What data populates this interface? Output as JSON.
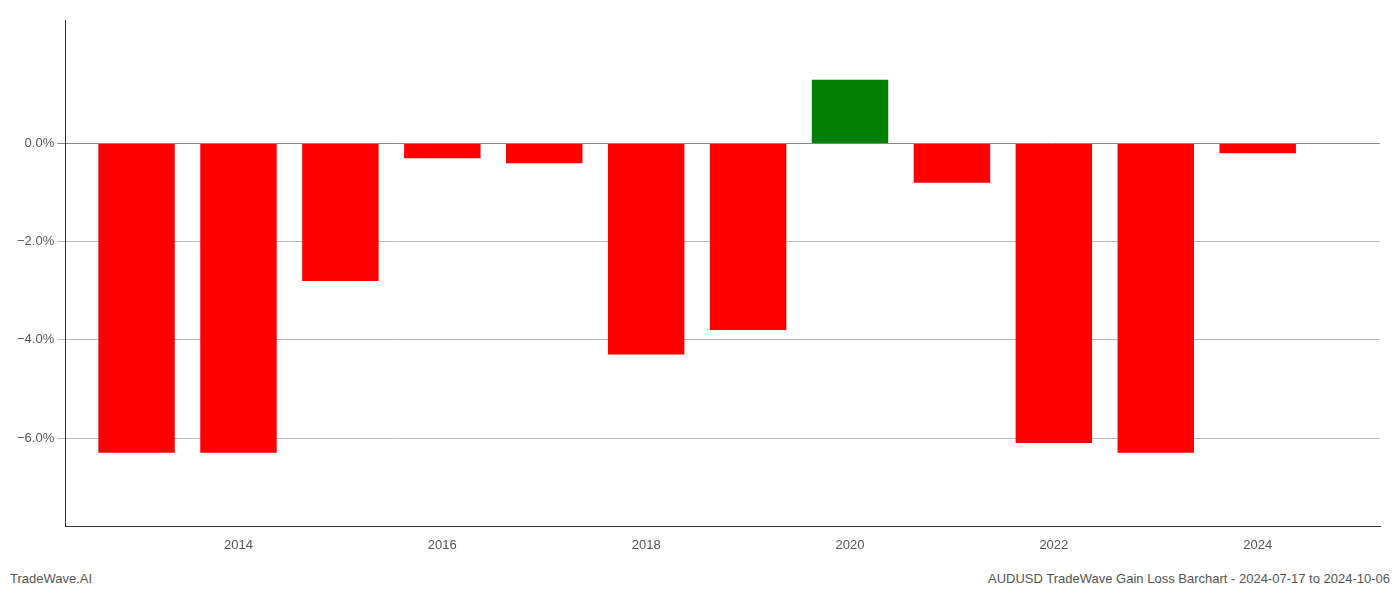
{
  "chart_data": {
    "type": "bar",
    "title": "AUDUSD TradeWave Gain Loss Barchart - 2024-07-17 to 2024-10-06",
    "annotations": [
      "TradeWave.AI"
    ],
    "x": [
      2013,
      2014,
      2015,
      2016,
      2017,
      2018,
      2019,
      2020,
      2021,
      2022,
      2023,
      2024
    ],
    "values": [
      -0.063,
      -0.063,
      -0.028,
      -0.003,
      -0.004,
      -0.043,
      -0.038,
      0.013,
      -0.008,
      -0.061,
      -0.063,
      -0.002
    ],
    "colors": [
      "#FF0000",
      "#FF0000",
      "#FF0000",
      "#FF0000",
      "#FF0000",
      "#FF0000",
      "#FF0000",
      "#008000",
      "#FF0000",
      "#FF0000",
      "#FF0000",
      "#FF0000"
    ],
    "xlim": [
      2012.3,
      2025.2
    ],
    "xticks": [
      2014,
      2016,
      2018,
      2020,
      2022,
      2024
    ],
    "ylim": [
      -0.078,
      0.025
    ],
    "yticks": [
      {
        "value": -0.06,
        "label": "−6.0%"
      },
      {
        "value": -0.04,
        "label": "−4.0%"
      },
      {
        "value": -0.02,
        "label": "−2.0%"
      },
      {
        "value": 0.0,
        "label": "0.0%"
      }
    ],
    "grid": "y"
  }
}
